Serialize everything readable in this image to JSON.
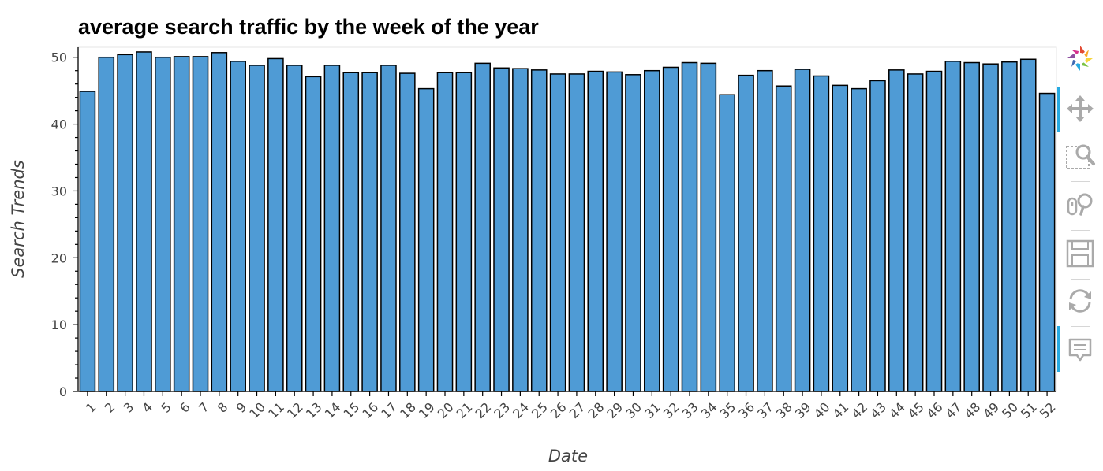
{
  "chart_data": {
    "type": "bar",
    "title": "average search traffic by the week of the year",
    "xlabel": "Date",
    "ylabel": "Search Trends",
    "ylim": [
      0,
      51.5
    ],
    "yticks": [
      0,
      10,
      20,
      30,
      40,
      50
    ],
    "categories": [
      "1",
      "2",
      "3",
      "4",
      "5",
      "6",
      "7",
      "8",
      "9",
      "10",
      "11",
      "12",
      "13",
      "14",
      "15",
      "16",
      "17",
      "18",
      "19",
      "20",
      "21",
      "22",
      "23",
      "24",
      "25",
      "26",
      "27",
      "28",
      "29",
      "30",
      "31",
      "32",
      "33",
      "34",
      "35",
      "36",
      "37",
      "38",
      "39",
      "40",
      "41",
      "42",
      "43",
      "44",
      "45",
      "46",
      "47",
      "48",
      "49",
      "50",
      "51",
      "52"
    ],
    "values": [
      44.9,
      50.0,
      50.4,
      50.8,
      50.0,
      50.1,
      50.1,
      50.7,
      49.4,
      48.8,
      49.8,
      48.8,
      47.1,
      48.8,
      47.7,
      47.7,
      48.8,
      47.6,
      45.3,
      47.7,
      47.7,
      49.1,
      48.4,
      48.3,
      48.1,
      47.5,
      47.5,
      47.9,
      47.8,
      47.4,
      48.0,
      48.5,
      49.2,
      49.1,
      44.4,
      47.3,
      48.0,
      45.7,
      48.2,
      47.2,
      45.8,
      45.3,
      46.5,
      48.1,
      47.5,
      47.9,
      49.4,
      49.2,
      49.0,
      49.3,
      49.7,
      44.6
    ],
    "bar_color": "#4f9bd5",
    "bar_outline": "#000000",
    "grid": false,
    "legend": "none"
  },
  "toolbar": {
    "items": [
      {
        "name": "bokeh-logo-icon",
        "interactable": false
      },
      {
        "name": "pan-tool-icon",
        "interactable": true
      },
      {
        "name": "box-zoom-tool-icon",
        "interactable": true
      },
      {
        "name": "wheel-zoom-tool-icon",
        "interactable": true
      },
      {
        "name": "save-tool-icon",
        "interactable": true
      },
      {
        "name": "reset-tool-icon",
        "interactable": true
      },
      {
        "name": "hover-tool-icon",
        "interactable": true
      }
    ],
    "active_color": "#26aae1",
    "icon_color": "#aaaaaa"
  }
}
